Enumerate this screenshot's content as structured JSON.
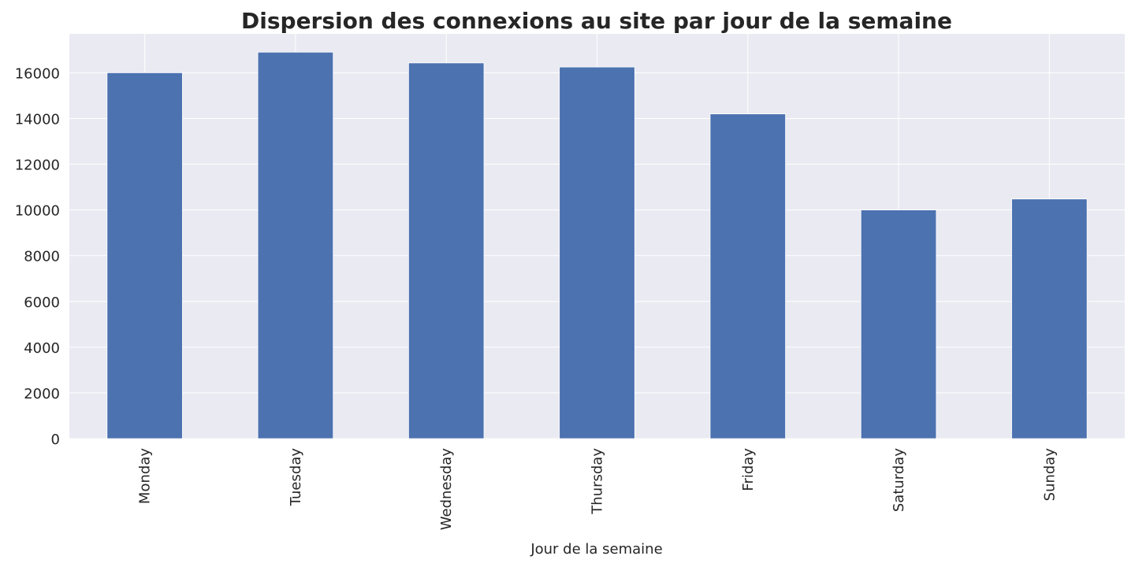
{
  "chart_data": {
    "type": "bar",
    "title": "Dispersion des connexions au site par jour de la semaine",
    "xlabel": "Jour de la semaine",
    "ylabel": "",
    "categories": [
      "Monday",
      "Tuesday",
      "Wednesday",
      "Thursday",
      "Friday",
      "Saturday",
      "Sunday"
    ],
    "values": [
      16000,
      16900,
      16430,
      16250,
      14200,
      10000,
      10480
    ],
    "ylim": [
      0,
      17700
    ],
    "yticks": [
      0,
      2000,
      4000,
      6000,
      8000,
      10000,
      12000,
      14000,
      16000
    ],
    "grid": true,
    "legend": "none",
    "bar_color": "#4c72b0",
    "background_color": "#eaeaf2",
    "grid_color": "#ffffff"
  }
}
